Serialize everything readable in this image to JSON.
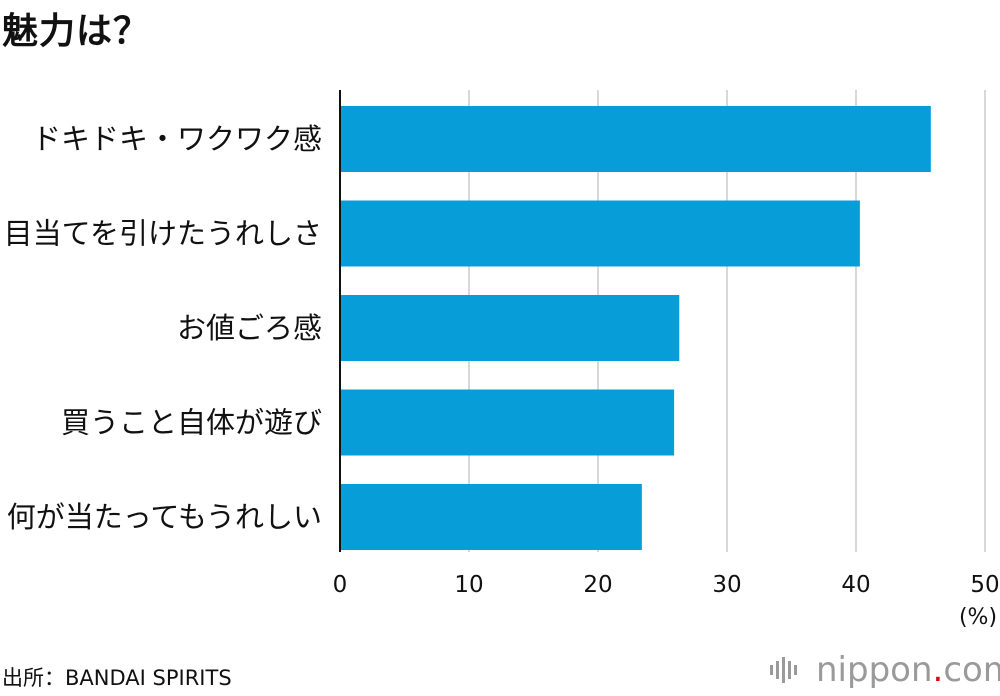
{
  "title": "魅力は？",
  "source": "出所：BANDAI SPIRITS",
  "logo": {
    "brand": "nippon",
    "dot": ".",
    "tld": "com"
  },
  "chart_data": {
    "type": "bar",
    "orientation": "horizontal",
    "categories": [
      "ドキドキ・ワクワク感",
      "目当てを引けたうれしさ",
      "お値ごろ感",
      "買うこと自体が遊び",
      "何が当たってもうれしい"
    ],
    "values": [
      45.8,
      40.3,
      26.3,
      25.9,
      23.4
    ],
    "xlim": [
      0,
      50
    ],
    "xticks": [
      "0",
      "10",
      "20",
      "30",
      "40",
      "50"
    ],
    "unit": "(%)",
    "grid": true,
    "bar_color": "#069dd9",
    "grid_color": "#cccccc"
  }
}
